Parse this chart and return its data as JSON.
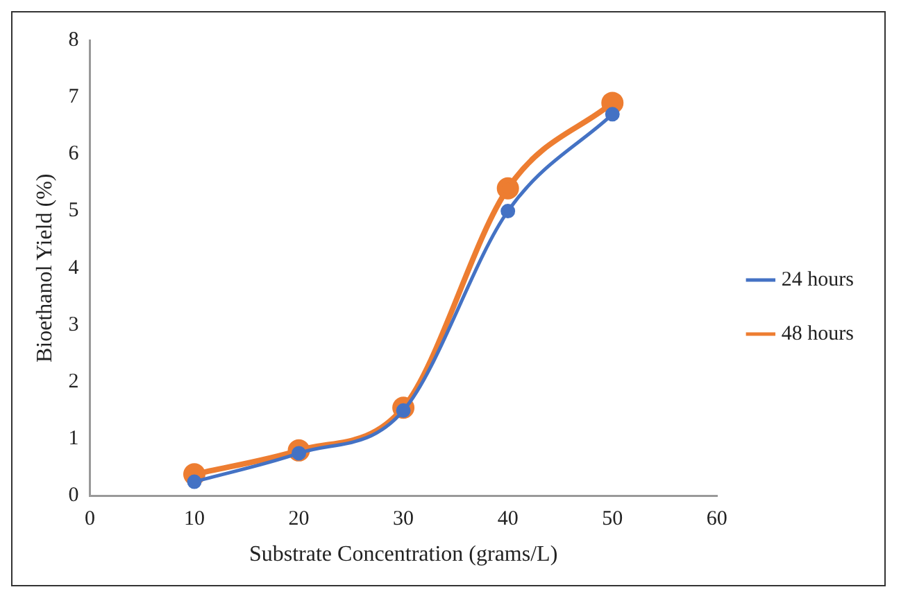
{
  "chart_data": {
    "type": "line",
    "xlabel": "Substrate Concentration (grams/L)",
    "ylabel": "Bioethanol Yield (%)",
    "x": [
      10,
      20,
      30,
      40,
      50
    ],
    "series": [
      {
        "name": "24 hours",
        "color": "#4472c4",
        "values": [
          0.25,
          0.75,
          1.5,
          5.0,
          6.7
        ]
      },
      {
        "name": "48 hours",
        "color": "#ed7d31",
        "values": [
          0.38,
          0.8,
          1.55,
          5.4,
          6.9
        ]
      }
    ],
    "xlim": [
      0,
      60
    ],
    "xticks": [
      0,
      10,
      20,
      30,
      40,
      50,
      60
    ],
    "ylim": [
      0,
      8
    ],
    "yticks": [
      0,
      1,
      2,
      3,
      4,
      5,
      6,
      7,
      8
    ],
    "grid": false,
    "legend": "right",
    "marker": "circle",
    "line_style": "solid"
  }
}
